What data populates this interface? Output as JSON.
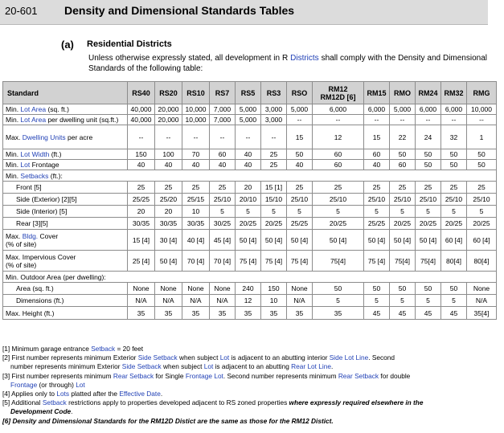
{
  "header": {
    "number": "20-601",
    "title": "Density and Dimensional Standards Tables"
  },
  "subsection": {
    "label": "(a)",
    "title": "Residential Districts"
  },
  "intro": {
    "pre": "Unless otherwise expressly stated, all development in R ",
    "link": "Districts",
    "post": " shall comply with the Density and Dimensional Standards of the following table:"
  },
  "table": {
    "standard_header": "Standard",
    "columns": [
      "RS40",
      "RS20",
      "RS10",
      "RS7",
      "RS5",
      "RS3",
      "RSO",
      "RM12\nRM12D [6]",
      "RM15",
      "RMO",
      "RM24",
      "RM32",
      "RMG"
    ],
    "rows": [
      {
        "id": "min-lot-area",
        "pre": "Min. ",
        "link": "Lot Area",
        "post": " (sq. ft.)",
        "h": 13,
        "values": [
          "40,000",
          "20,000",
          "10,000",
          "7,000",
          "5,000",
          "3,000",
          "5,000",
          "6,000",
          "6,000",
          "5,000",
          "6,000",
          "6,000",
          "10,000"
        ]
      },
      {
        "id": "min-lot-area-per-unit",
        "pre": "Min. ",
        "link": "Lot Area",
        "post": "  per dwelling unit (sq.ft.)",
        "h": 13,
        "values": [
          "40,000",
          "20,000",
          "10,000",
          "7,000",
          "5,000",
          "3,000",
          "--",
          "--",
          "--",
          "--",
          "--",
          "--",
          "--"
        ]
      },
      {
        "id": "max-dwelling-units",
        "pre": "Max. ",
        "link": "Dwelling Units",
        "post": " per acre",
        "h": 30,
        "values": [
          "--",
          "--",
          "--",
          "--",
          "--",
          "--",
          "15",
          "12",
          "15",
          "22",
          "24",
          "32",
          "1"
        ]
      },
      {
        "id": "min-lot-width",
        "pre": "Min. ",
        "link": "Lot Width",
        "post": " (ft.)",
        "h": 13,
        "values": [
          "150",
          "100",
          "70",
          "60",
          "40",
          "25",
          "50",
          "60",
          "60",
          "50",
          "50",
          "50",
          "50"
        ]
      },
      {
        "id": "min-lot-frontage",
        "pre": "Min. ",
        "link": "Lot",
        "post": " Frontage",
        "h": 13,
        "values": [
          "40",
          "40",
          "40",
          "40",
          "40",
          "25",
          "40",
          "60",
          "40",
          "60",
          "50",
          "50",
          "50"
        ]
      },
      {
        "id": "min-setbacks",
        "pre": "Min. ",
        "link": "Setbacks",
        "post": " (ft.):",
        "h": 14,
        "span": true
      },
      {
        "id": "front",
        "pre": "Front [5]",
        "indent": true,
        "h": 15,
        "values": [
          "25",
          "25",
          "25",
          "25",
          "20",
          "15 [1]",
          "25",
          "25",
          "25",
          "25",
          "25",
          "25",
          "25"
        ]
      },
      {
        "id": "side-exterior",
        "pre": "Side (Exterior) [2][5]",
        "indent": true,
        "h": 15,
        "values": [
          "25/25",
          "25/20",
          "25/15",
          "25/10",
          "20/10",
          "15/10",
          "25/10",
          "25/10",
          "25/10",
          "25/10",
          "25/10",
          "25/10",
          "25/10"
        ]
      },
      {
        "id": "side-interior",
        "pre": "Side (Interior) [5]",
        "indent": true,
        "h": 15,
        "values": [
          "20",
          "20",
          "10",
          "5",
          "5",
          "5",
          "5",
          "5",
          "5",
          "5",
          "5",
          "5",
          "5"
        ]
      },
      {
        "id": "rear",
        "pre": "Rear [3][5]",
        "indent": true,
        "h": 15,
        "values": [
          "30/35",
          "30/35",
          "30/35",
          "30/25",
          "20/25",
          "20/25",
          "25/25",
          "20/25",
          "25/25",
          "20/25",
          "20/25",
          "20/25",
          "20/25"
        ]
      },
      {
        "id": "max-bldg-cover",
        "pre": "Max. ",
        "link": "Bldg.",
        "post": " Cover\n(% of site)",
        "h": 26,
        "wrap": true,
        "values": [
          "15 [4]",
          "30 [4]",
          "40 [4]",
          "45 [4]",
          "50 [4]",
          "50 [4]",
          "50 [4]",
          "50 [4]",
          "50 [4]",
          "50 [4]",
          "50 [4]",
          "60 [4]",
          "60 [4]"
        ]
      },
      {
        "id": "max-impervious-cover",
        "pre": "Max. Impervious Cover\n(% of site)",
        "h": 26,
        "wrap": true,
        "values": [
          "25 [4]",
          "50 [4]",
          "70 [4]",
          "70 [4]",
          "75 [4]",
          "75 [4]",
          "75 [4]",
          "75[4]",
          "75 [4]",
          "75[4]",
          "75[4]",
          "80[4]",
          "80[4]"
        ]
      },
      {
        "id": "min-outdoor-area",
        "pre": "Min. Outdoor Area (per dwelling):",
        "h": 14,
        "span": true
      },
      {
        "id": "area",
        "pre": "Area (sq. ft.)",
        "indent": true,
        "h": 15,
        "values": [
          "None",
          "None",
          "None",
          "None",
          "240",
          "150",
          "None",
          "50",
          "50",
          "50",
          "50",
          "50",
          "None"
        ]
      },
      {
        "id": "dimensions",
        "pre": "Dimensions (ft.)",
        "indent": true,
        "h": 15,
        "values": [
          "N/A",
          "N/A",
          "N/A",
          "N/A",
          "12",
          "10",
          "N/A",
          "5",
          "5",
          "5",
          "5",
          "5",
          "N/A"
        ]
      },
      {
        "id": "max-height",
        "pre": "Max. Height (ft.)",
        "h": 16,
        "values": [
          "35",
          "35",
          "35",
          "35",
          "35",
          "35",
          "35",
          "35",
          "45",
          "45",
          "45",
          "45",
          "35[4]"
        ]
      }
    ]
  },
  "notes": [
    {
      "parts": [
        {
          "t": "[1] Minimum garage entrance "
        },
        {
          "t": "Setback",
          "l": true
        },
        {
          "t": " = 20 feet"
        }
      ]
    },
    {
      "parts": [
        {
          "t": "[2] First number represents minimum Exterior "
        },
        {
          "t": "Side Setback",
          "l": true
        },
        {
          "t": " when subject "
        },
        {
          "t": "Lot",
          "l": true
        },
        {
          "t": " is adjacent to an abutting interior "
        },
        {
          "t": "Side Lot Line",
          "l": true
        },
        {
          "t": ". Second"
        }
      ]
    },
    {
      "indent": true,
      "parts": [
        {
          "t": "number represents minimum Exterior "
        },
        {
          "t": "Side Setback",
          "l": true
        },
        {
          "t": " when subject "
        },
        {
          "t": "Lot",
          "l": true
        },
        {
          "t": " is adjacent to an abutting "
        },
        {
          "t": "Rear Lot Line",
          "l": true
        },
        {
          "t": "."
        }
      ]
    },
    {
      "parts": [
        {
          "t": "[3] First number represents minimum "
        },
        {
          "t": "Rear Setback",
          "l": true
        },
        {
          "t": " for Single "
        },
        {
          "t": "Frontage Lot",
          "l": true
        },
        {
          "t": ". Second number represents minimum "
        },
        {
          "t": "Rear Setback",
          "l": true
        },
        {
          "t": " for double"
        }
      ]
    },
    {
      "indent": true,
      "parts": [
        {
          "t": "Frontage",
          "l": true
        },
        {
          "t": " (or through) "
        },
        {
          "t": "Lot",
          "l": true
        }
      ]
    },
    {
      "parts": [
        {
          "t": "[4] Applies only to "
        },
        {
          "t": "Lots",
          "l": true
        },
        {
          "t": " platted after the "
        },
        {
          "t": "Effective Date",
          "l": true
        },
        {
          "t": "."
        }
      ]
    },
    {
      "parts": [
        {
          "t": "[5] Additional "
        },
        {
          "t": "Setback",
          "l": true
        },
        {
          "t": " restrictions apply to properties developed adjacent to RS zoned properties "
        },
        {
          "t": "where expressly required elsewhere in the",
          "b": true
        }
      ]
    },
    {
      "indent": true,
      "parts": [
        {
          "t": "Development Code",
          "b": true
        },
        {
          "t": "."
        }
      ]
    },
    {
      "parts": [
        {
          "t": "[6] Density and Dimensional Standards for the RM12D Distict are the same as those for the RM12 Distict.",
          "b": true
        }
      ]
    }
  ]
}
